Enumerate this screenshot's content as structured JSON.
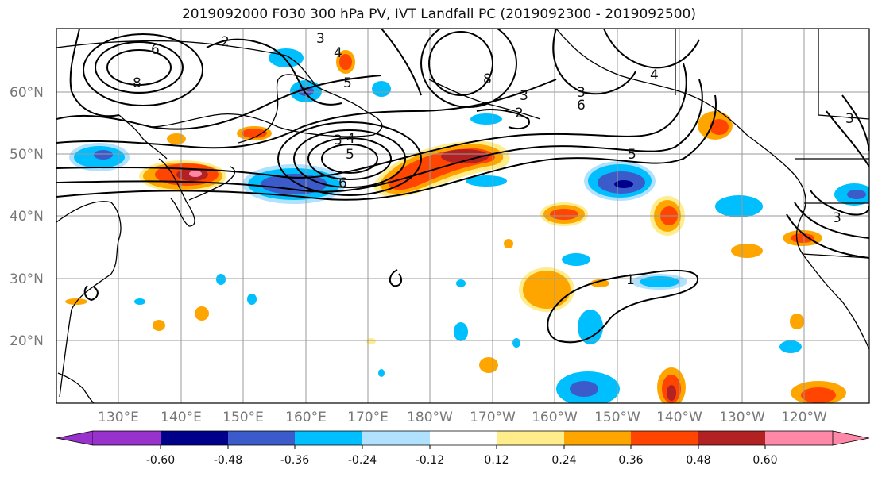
{
  "title": "2019092000 F030 300 hPa PV, IVT Landfall PC (2019092300 - 2019092500)",
  "lat_labels": [
    "60°N",
    "50°N",
    "40°N",
    "30°N",
    "20°N"
  ],
  "lon_labels": [
    "130°E",
    "140°E",
    "150°E",
    "160°E",
    "170°E",
    "180°W",
    "170°W",
    "160°W",
    "150°W",
    "140°W",
    "130°W",
    "120°W"
  ],
  "colorbar": {
    "colors": [
      "#9932CC",
      "#00008B",
      "#3A5BC9",
      "#00BFFF",
      "#B0E2FF",
      "#FFFFFF",
      "#FFEC8B",
      "#FFA500",
      "#FF4500",
      "#B22222",
      "#FF88A8"
    ],
    "tick_labels": [
      "-0.60",
      "-0.48",
      "-0.36",
      "-0.24",
      "-0.12",
      "0.12",
      "0.24",
      "0.36",
      "0.48",
      "0.60"
    ]
  },
  "contour_labels": [
    "6",
    "8",
    "2",
    "3",
    "4",
    "5",
    "3",
    "4",
    "5",
    "6",
    "8",
    "2",
    "3",
    "3",
    "4",
    "5",
    "6",
    "1",
    "3",
    "3"
  ]
}
